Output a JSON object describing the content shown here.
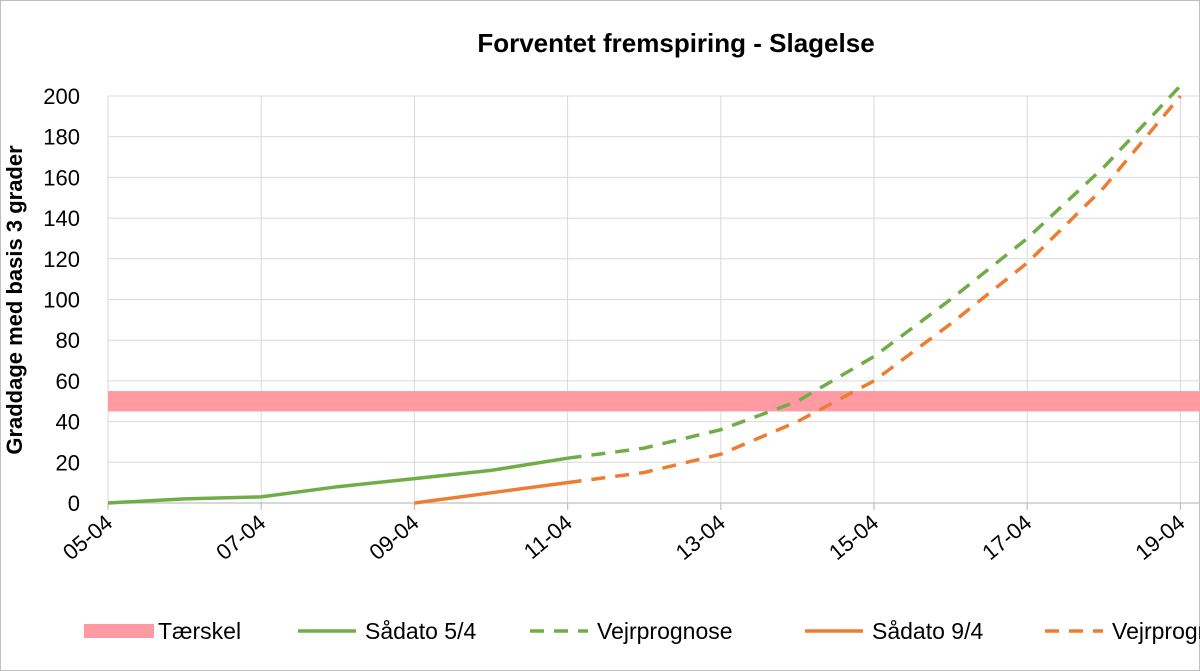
{
  "chart_data": {
    "type": "line",
    "title": "Forventet fremspiring - Slagelse",
    "ylabel": "Graddage med basis 3 grader",
    "xlabel": "",
    "ylim": [
      0,
      200
    ],
    "yticks": [
      "0",
      "20",
      "40",
      "60",
      "80",
      "100",
      "120",
      "140",
      "160",
      "180",
      "200"
    ],
    "x_tick_labels": [
      "05-04",
      "07-04",
      "09-04",
      "11-04",
      "13-04",
      "15-04",
      "17-04",
      "19-04"
    ],
    "grid": true,
    "legend_position": "bottom",
    "threshold": {
      "name": "Tærskel",
      "range": [
        45,
        55
      ],
      "color": "#ff9aa2"
    },
    "series": [
      {
        "name": "Sådato 5/4",
        "style": "solid",
        "color": "#70ad47",
        "points": [
          [
            "05-04",
            0
          ],
          [
            "06-04",
            2
          ],
          [
            "07-04",
            3
          ],
          [
            "08-04",
            8
          ],
          [
            "09-04",
            12
          ],
          [
            "10-04",
            16
          ],
          [
            "11-04",
            22
          ]
        ]
      },
      {
        "name": "Vejrprognose",
        "style": "dashed",
        "color": "#70ad47",
        "points": [
          [
            "11-04",
            22
          ],
          [
            "12-04",
            27
          ],
          [
            "13-04",
            36
          ],
          [
            "14-04",
            50
          ],
          [
            "15-04",
            72
          ],
          [
            "16-04",
            100
          ],
          [
            "17-04",
            130
          ],
          [
            "18-04",
            165
          ],
          [
            "19-04",
            205
          ]
        ]
      },
      {
        "name": "Sådato 9/4",
        "style": "solid",
        "color": "#ed7d31",
        "points": [
          [
            "09-04",
            0
          ],
          [
            "10-04",
            5
          ],
          [
            "11-04",
            10
          ]
        ]
      },
      {
        "name": "Vejrprognose",
        "style": "dashed",
        "color": "#ed7d31",
        "points": [
          [
            "11-04",
            10
          ],
          [
            "12-04",
            15
          ],
          [
            "13-04",
            24
          ],
          [
            "14-04",
            40
          ],
          [
            "15-04",
            60
          ],
          [
            "16-04",
            88
          ],
          [
            "17-04",
            118
          ],
          [
            "18-04",
            155
          ],
          [
            "19-04",
            200
          ]
        ]
      }
    ]
  }
}
